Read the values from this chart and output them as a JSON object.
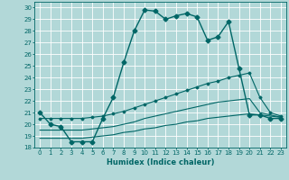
{
  "xlabel": "Humidex (Indice chaleur)",
  "background_color": "#b2d8d8",
  "grid_color": "#ffffff",
  "line_color": "#006666",
  "xlim": [
    -0.5,
    23.5
  ],
  "ylim": [
    18,
    30.5
  ],
  "xticks": [
    0,
    1,
    2,
    3,
    4,
    5,
    6,
    7,
    8,
    9,
    10,
    11,
    12,
    13,
    14,
    15,
    16,
    17,
    18,
    19,
    20,
    21,
    22,
    23
  ],
  "yticks": [
    18,
    19,
    20,
    21,
    22,
    23,
    24,
    25,
    26,
    27,
    28,
    29,
    30
  ],
  "lines": [
    {
      "x": [
        0,
        1,
        2,
        3,
        4,
        5,
        6,
        7,
        8,
        9,
        10,
        11,
        12,
        13,
        14,
        15,
        16,
        17,
        18,
        19,
        20,
        21,
        22,
        23
      ],
      "y": [
        21.0,
        20.0,
        19.8,
        18.5,
        18.5,
        18.5,
        20.5,
        22.3,
        25.3,
        28.0,
        29.8,
        29.7,
        29.0,
        29.3,
        29.5,
        29.2,
        27.2,
        27.5,
        28.8,
        24.8,
        20.8,
        20.8,
        20.5,
        20.5
      ],
      "marker": "D",
      "markersize": 2.5,
      "linewidth": 1.0
    },
    {
      "x": [
        0,
        1,
        2,
        3,
        4,
        5,
        6,
        7,
        8,
        9,
        10,
        11,
        12,
        13,
        14,
        15,
        16,
        17,
        18,
        19,
        20,
        21,
        22,
        23
      ],
      "y": [
        20.5,
        20.5,
        20.5,
        20.5,
        20.5,
        20.6,
        20.7,
        20.9,
        21.1,
        21.4,
        21.7,
        22.0,
        22.3,
        22.6,
        22.9,
        23.2,
        23.5,
        23.7,
        24.0,
        24.2,
        24.4,
        22.3,
        21.0,
        20.7
      ],
      "marker": "D",
      "markersize": 1.5,
      "linewidth": 0.8
    },
    {
      "x": [
        0,
        1,
        2,
        3,
        4,
        5,
        6,
        7,
        8,
        9,
        10,
        11,
        12,
        13,
        14,
        15,
        16,
        17,
        18,
        19,
        20,
        21,
        22,
        23
      ],
      "y": [
        19.5,
        19.5,
        19.5,
        19.5,
        19.5,
        19.6,
        19.7,
        19.8,
        20.0,
        20.2,
        20.5,
        20.7,
        20.9,
        21.1,
        21.3,
        21.5,
        21.7,
        21.9,
        22.0,
        22.1,
        22.2,
        21.0,
        20.8,
        20.6
      ],
      "marker": null,
      "markersize": 0,
      "linewidth": 0.8
    },
    {
      "x": [
        0,
        1,
        2,
        3,
        4,
        5,
        6,
        7,
        8,
        9,
        10,
        11,
        12,
        13,
        14,
        15,
        16,
        17,
        18,
        19,
        20,
        21,
        22,
        23
      ],
      "y": [
        18.8,
        18.8,
        18.8,
        18.8,
        18.8,
        18.9,
        19.0,
        19.1,
        19.3,
        19.4,
        19.6,
        19.7,
        19.9,
        20.0,
        20.2,
        20.3,
        20.5,
        20.6,
        20.7,
        20.8,
        20.9,
        20.8,
        20.7,
        20.6
      ],
      "marker": null,
      "markersize": 0,
      "linewidth": 0.8
    }
  ]
}
